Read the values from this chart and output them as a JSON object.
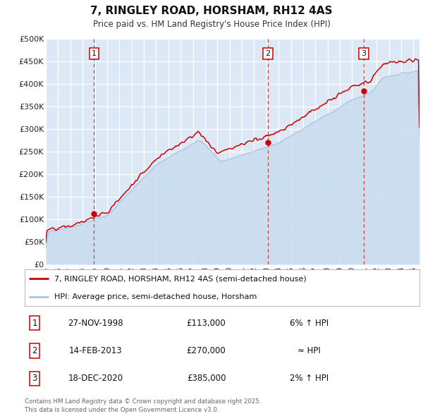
{
  "title": "7, RINGLEY ROAD, HORSHAM, RH12 4AS",
  "subtitle": "Price paid vs. HM Land Registry's House Price Index (HPI)",
  "background_color": "#ffffff",
  "plot_bg_color": "#dce8f5",
  "grid_color": "#ffffff",
  "hpi_color": "#aac4df",
  "hpi_fill_color": "#c8ddf0",
  "price_color": "#cc0000",
  "vline_color": "#cc3333",
  "sale_points": [
    {
      "year": 1998.92,
      "price": 113000,
      "label": "1"
    },
    {
      "year": 2013.12,
      "price": 270000,
      "label": "2"
    },
    {
      "year": 2020.96,
      "price": 385000,
      "label": "3"
    }
  ],
  "ylim": [
    0,
    500000
  ],
  "yticks": [
    0,
    50000,
    100000,
    150000,
    200000,
    250000,
    300000,
    350000,
    400000,
    450000,
    500000
  ],
  "ytick_labels": [
    "£0",
    "£50K",
    "£100K",
    "£150K",
    "£200K",
    "£250K",
    "£300K",
    "£350K",
    "£400K",
    "£450K",
    "£500K"
  ],
  "xmin": 1995,
  "xmax": 2025.5,
  "legend_entries": [
    "7, RINGLEY ROAD, HORSHAM, RH12 4AS (semi-detached house)",
    "HPI: Average price, semi-detached house, Horsham"
  ],
  "table_data": [
    {
      "num": "1",
      "date": "27-NOV-1998",
      "price": "£113,000",
      "note": "6% ↑ HPI"
    },
    {
      "num": "2",
      "date": "14-FEB-2013",
      "price": "£270,000",
      "note": "≈ HPI"
    },
    {
      "num": "3",
      "date": "18-DEC-2020",
      "price": "£385,000",
      "note": "2% ↑ HPI"
    }
  ],
  "footer": "Contains HM Land Registry data © Crown copyright and database right 2025.\nThis data is licensed under the Open Government Licence v3.0."
}
